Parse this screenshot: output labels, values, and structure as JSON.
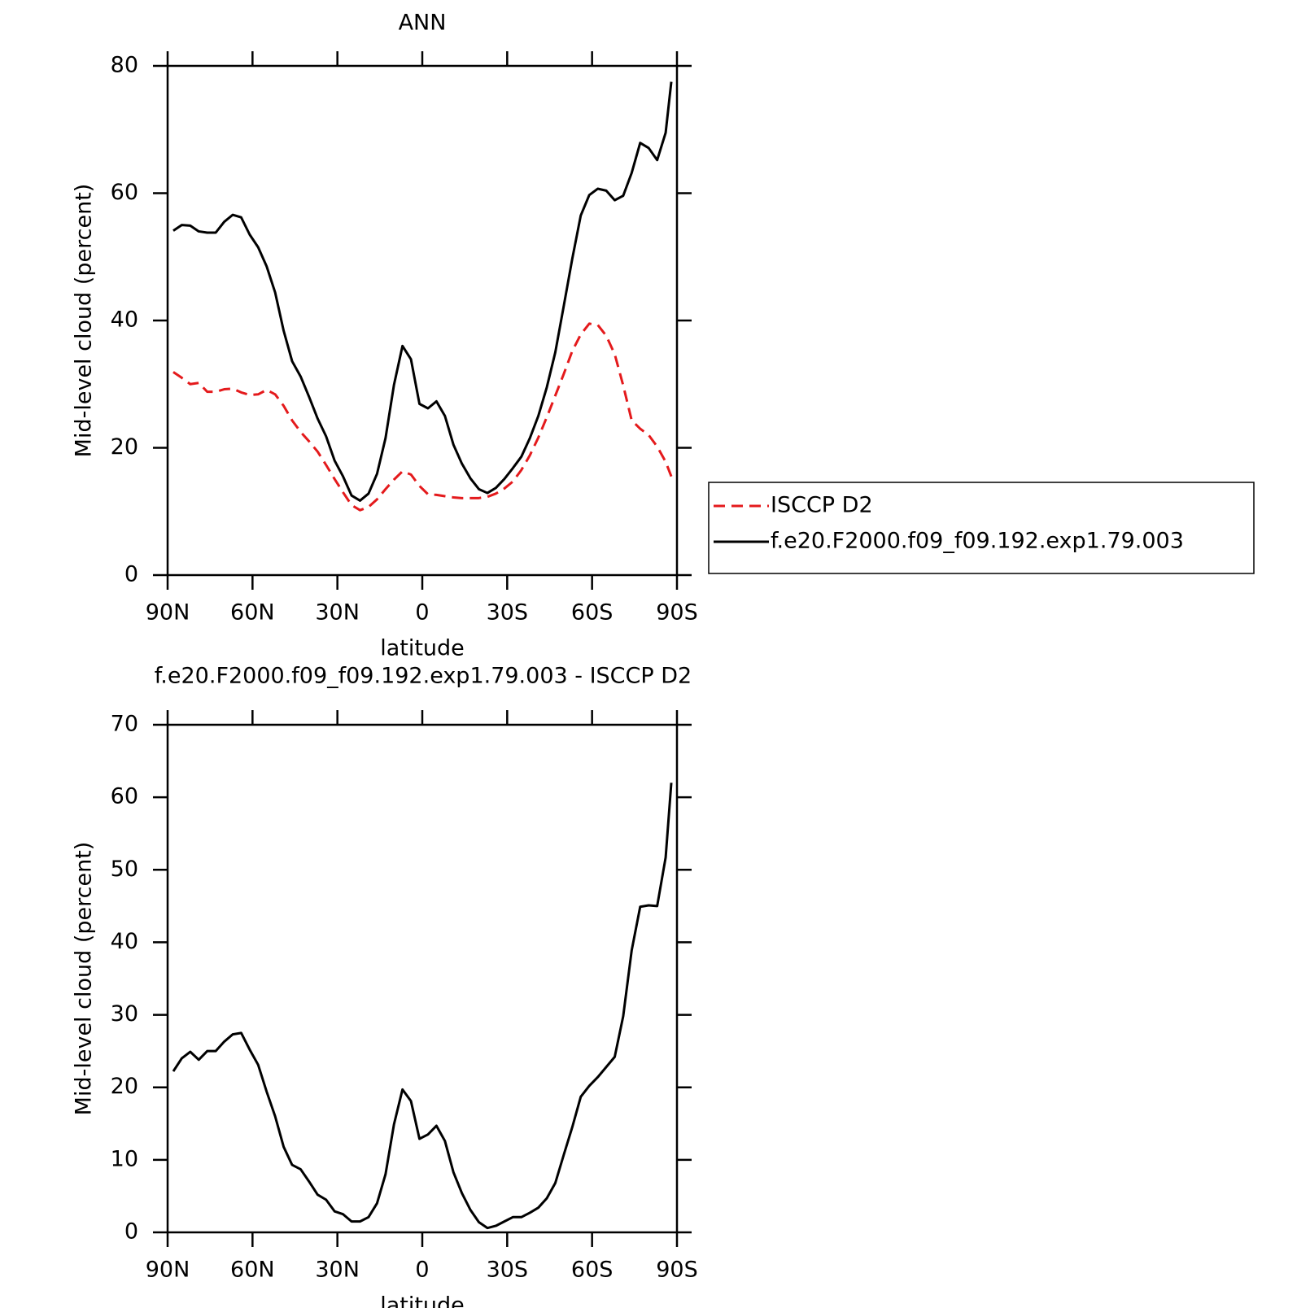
{
  "chart_data": [
    {
      "type": "line",
      "title": "ANN",
      "xlabel": "latitude",
      "ylabel": "Mid-level cloud (percent)",
      "x": [
        88,
        85,
        82,
        79,
        76,
        73,
        70,
        67,
        64,
        61,
        58,
        55,
        52,
        49,
        46,
        43,
        40,
        37,
        34,
        31,
        28,
        25,
        22,
        19,
        16,
        13,
        10,
        7,
        4,
        1,
        -2,
        -5,
        -8,
        -11,
        -14,
        -17,
        -20,
        -23,
        -26,
        -29,
        -32,
        -35,
        -38,
        -41,
        -44,
        -47,
        -50,
        -53,
        -56,
        -59,
        -62,
        -65,
        -68,
        -71,
        -74,
        -77,
        -80,
        -83,
        -86,
        -88
      ],
      "xlim": [
        90,
        -90
      ],
      "xticks": [
        {
          "value": 90,
          "label": "90N"
        },
        {
          "value": 60,
          "label": "60N"
        },
        {
          "value": 30,
          "label": "30N"
        },
        0,
        {
          "value": -30,
          "label": "30S"
        },
        {
          "value": -60,
          "label": "60S"
        },
        {
          "value": -90,
          "label": "90S"
        }
      ],
      "ylim": [
        0,
        80
      ],
      "yticks": [
        0,
        20,
        40,
        60,
        80
      ],
      "legend": "right",
      "series": [
        {
          "name": "ISCCP D2",
          "color": "#e41a1c",
          "dashed": true,
          "values": [
            31.9,
            31,
            30,
            30.2,
            28.8,
            28.8,
            29.2,
            29.3,
            28.7,
            28.3,
            28.4,
            29.1,
            28.4,
            26.6,
            24.3,
            22.5,
            21,
            19.4,
            17.3,
            15.1,
            13,
            11,
            10.2,
            10.7,
            11.9,
            13.5,
            15,
            16.3,
            15.8,
            14,
            12.7,
            12.6,
            12.4,
            12.2,
            12.1,
            12.1,
            12.1,
            12.3,
            12.8,
            13.6,
            14.7,
            16.5,
            18.8,
            21.6,
            24.8,
            28.2,
            31.6,
            35.2,
            37.8,
            39.5,
            39.3,
            37.6,
            34.7,
            29.8,
            24.3,
            23,
            22,
            20.2,
            17.8,
            15.5
          ]
        },
        {
          "name": "f.e20.F2000.f09_f09.192.exp1.79.003",
          "color": "#000000",
          "dashed": false,
          "values": [
            54.1,
            55,
            54.9,
            54,
            53.8,
            53.8,
            55.5,
            56.6,
            56.2,
            53.5,
            51.5,
            48.5,
            44.4,
            38.4,
            33.6,
            31.2,
            28,
            24.6,
            21.8,
            18,
            15.5,
            12.5,
            11.7,
            12.8,
            15.9,
            21.5,
            29.9,
            36,
            33.9,
            26.9,
            26.2,
            27.3,
            25,
            20.5,
            17.5,
            15.2,
            13.5,
            12.9,
            13.7,
            15.1,
            16.8,
            18.6,
            21.5,
            25,
            29.5,
            35,
            42.3,
            49.7,
            56.5,
            59.7,
            60.7,
            60.4,
            58.9,
            59.6,
            63.2,
            67.9,
            67.1,
            65.2,
            69.5,
            77.5
          ]
        }
      ]
    },
    {
      "type": "line",
      "title": "f.e20.F2000.f09_f09.192.exp1.79.003 - ISCCP D2",
      "xlabel": "latitude",
      "ylabel": "Mid-level cloud (percent)",
      "x": [
        88,
        85,
        82,
        79,
        76,
        73,
        70,
        67,
        64,
        61,
        58,
        55,
        52,
        49,
        46,
        43,
        40,
        37,
        34,
        31,
        28,
        25,
        22,
        19,
        16,
        13,
        10,
        7,
        4,
        1,
        -2,
        -5,
        -8,
        -11,
        -14,
        -17,
        -20,
        -23,
        -26,
        -29,
        -32,
        -35,
        -38,
        -41,
        -44,
        -47,
        -50,
        -53,
        -56,
        -59,
        -62,
        -65,
        -68,
        -71,
        -74,
        -77,
        -80,
        -83,
        -86,
        -88
      ],
      "xlim": [
        90,
        -90
      ],
      "xticks": [
        {
          "value": 90,
          "label": "90N"
        },
        {
          "value": 60,
          "label": "60N"
        },
        {
          "value": 30,
          "label": "30N"
        },
        0,
        {
          "value": -30,
          "label": "30S"
        },
        {
          "value": -60,
          "label": "60S"
        },
        {
          "value": -90,
          "label": "90S"
        }
      ],
      "ylim": [
        0,
        70
      ],
      "yticks": [
        0,
        10,
        20,
        30,
        40,
        50,
        60,
        70
      ],
      "color": "#000000",
      "values": [
        22.2,
        24,
        24.9,
        23.8,
        25,
        25,
        26.3,
        27.3,
        27.5,
        25.2,
        23.1,
        19.4,
        16,
        11.8,
        9.3,
        8.7,
        7,
        5.2,
        4.5,
        2.9,
        2.5,
        1.5,
        1.5,
        2.1,
        4,
        8,
        14.9,
        19.7,
        18.1,
        12.9,
        13.5,
        14.7,
        12.6,
        8.3,
        5.4,
        3.1,
        1.4,
        0.6,
        0.9,
        1.5,
        2.1,
        2.1,
        2.7,
        3.4,
        4.7,
        6.8,
        10.7,
        14.5,
        18.7,
        20.2,
        21.4,
        22.8,
        24.2,
        29.8,
        38.9,
        44.9,
        45.1,
        45,
        51.7,
        62
      ]
    }
  ]
}
